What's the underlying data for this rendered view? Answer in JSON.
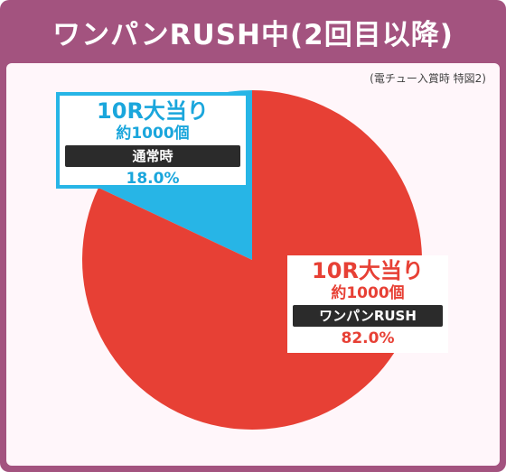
{
  "title": "ワンパンRUSH中(2回目以降)",
  "source_note": "(電チュー入賞時 特図2)",
  "colors": {
    "frame": "#a3537f",
    "panel": "#fff6fa",
    "red": "#e74035",
    "blue": "#27b5e6",
    "pill": "#2b2b2b"
  },
  "chart_data": {
    "type": "pie",
    "title": "",
    "slices": [
      {
        "label": "通常時",
        "value": 18.0,
        "color": "#27b5e6",
        "round_text": "10R大当り",
        "payout_text": "約1000個",
        "value_text": "18.0%"
      },
      {
        "label": "ワンパンRUSH",
        "value": 82.0,
        "color": "#e74035",
        "round_text": "10R大当り",
        "payout_text": "約1000個",
        "value_text": "82.0%"
      }
    ]
  }
}
